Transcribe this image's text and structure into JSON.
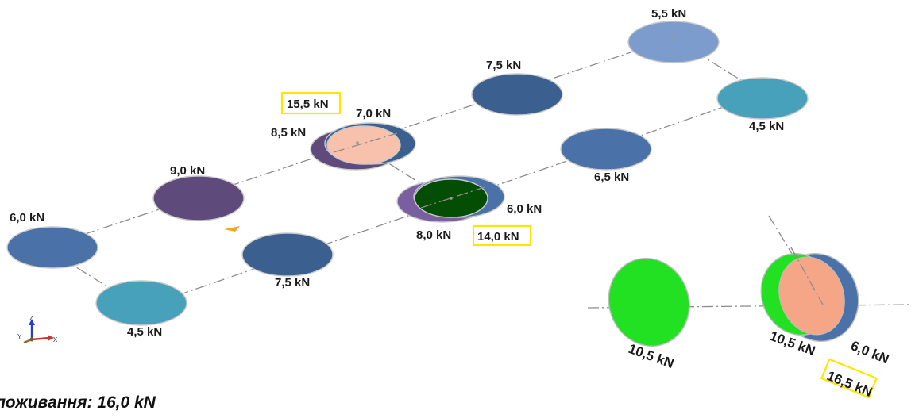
{
  "colors": {
    "purple": "#5f4a7c",
    "steel_blue": "#4a72a8",
    "dark_blue": "#3b5f8e",
    "light_blue": "#7b9ccc",
    "teal": "#47a1bb",
    "salmon": "#f7c1ac",
    "dark_green": "#044d04",
    "bright_green": "#22e122",
    "peach": "#f4a687",
    "highlight_yellow": "#ffe600"
  },
  "loads": {
    "a": "6,0 kN",
    "b": "4,5 kN",
    "c": "9,0 kN",
    "d": "7,5 kN",
    "e": "8,5 kN",
    "f": "7,0 kN",
    "g": "15,5 kN",
    "h": "7,5 kN",
    "i": "8,0 kN",
    "j": "6,0 kN",
    "k": "14,0 kN",
    "l": "6,5 kN",
    "m": "5,5 kN",
    "n": "4,5 kN"
  },
  "detail": {
    "left": "10,5 kN",
    "right_a": "10,5 kN",
    "right_b": "6,0 kN",
    "total": "16,5 kN"
  },
  "axes": {
    "x": "X",
    "y": "Y",
    "z": "Z"
  },
  "caption": "ложивання: 16,0 kN"
}
